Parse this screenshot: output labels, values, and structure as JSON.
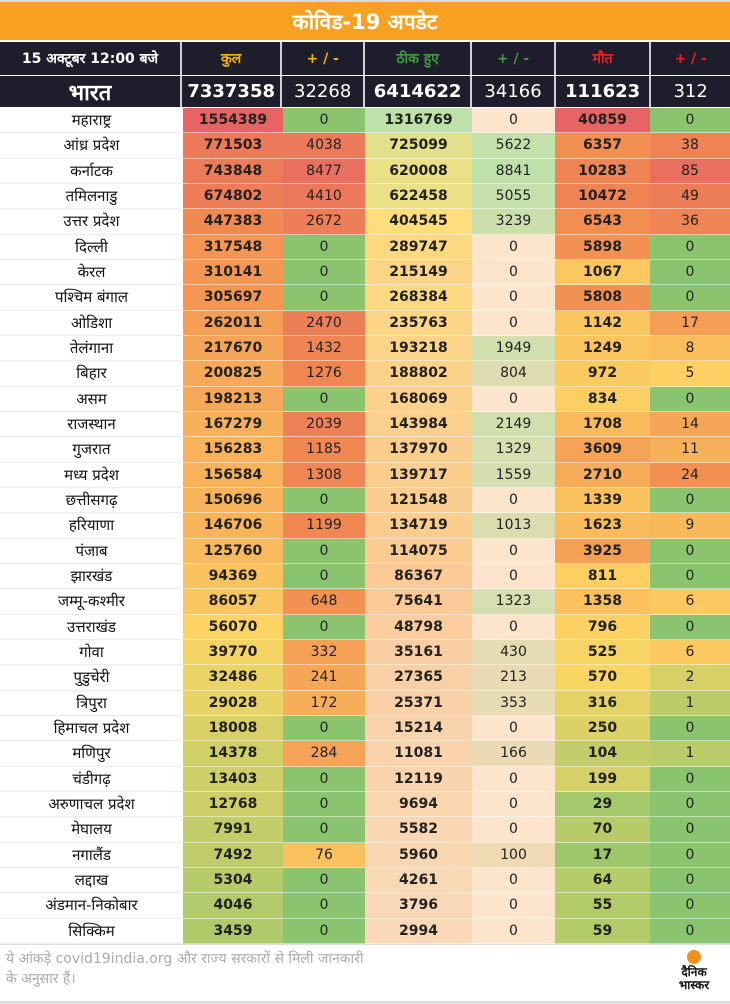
{
  "title": "कोविड-19 अपडेट",
  "header": {
    "date": "15 अक्टूबर 12:00 बजे",
    "total": "कुल",
    "total_delta": "+ / -",
    "recovered": "ठीक हुए",
    "recovered_delta": "+ / -",
    "deaths": "मौत",
    "deaths_delta": "+ / -"
  },
  "header_colors": {
    "total": "#f7b500",
    "recovered": "#3f9a3f",
    "deaths": "#e8202a"
  },
  "india": {
    "name": "भारत",
    "values": [
      "7337358",
      "32268",
      "6414622",
      "34166",
      "111623",
      "312"
    ]
  },
  "chart_data": {
    "type": "table",
    "columns": [
      "कुल",
      "+ / -",
      "ठीक हुए",
      "+ / -",
      "मौत",
      "+ / -"
    ],
    "rows": [
      [
        "महाराष्ट्र",
        1554389,
        0,
        1316769,
        0,
        40859,
        0
      ],
      [
        "आंध्र प्रदेश",
        771503,
        4038,
        725099,
        5622,
        6357,
        38
      ],
      [
        "कर्नाटक",
        743848,
        8477,
        620008,
        8841,
        10283,
        85
      ],
      [
        "तमिलनाडु",
        674802,
        4410,
        622458,
        5055,
        10472,
        49
      ],
      [
        "उत्तर प्रदेश",
        447383,
        2672,
        404545,
        3239,
        6543,
        36
      ],
      [
        "दिल्ली",
        317548,
        0,
        289747,
        0,
        5898,
        0
      ],
      [
        "केरल",
        310141,
        0,
        215149,
        0,
        1067,
        0
      ],
      [
        "पश्चिम बंगाल",
        305697,
        0,
        268384,
        0,
        5808,
        0
      ],
      [
        "ओडिशा",
        262011,
        2470,
        235763,
        0,
        1142,
        17
      ],
      [
        "तेलंगाना",
        217670,
        1432,
        193218,
        1949,
        1249,
        8
      ],
      [
        "बिहार",
        200825,
        1276,
        188802,
        804,
        972,
        5
      ],
      [
        "असम",
        198213,
        0,
        168069,
        0,
        834,
        0
      ],
      [
        "राजस्थान",
        167279,
        2039,
        143984,
        2149,
        1708,
        14
      ],
      [
        "गुजरात",
        156283,
        1185,
        137970,
        1329,
        3609,
        11
      ],
      [
        "मध्य प्रदेश",
        156584,
        1308,
        139717,
        1559,
        2710,
        24
      ],
      [
        "छत्तीसगढ़",
        150696,
        0,
        121548,
        0,
        1339,
        0
      ],
      [
        "हरियाणा",
        146706,
        1199,
        134719,
        1013,
        1623,
        9
      ],
      [
        "पंजाब",
        125760,
        0,
        114075,
        0,
        3925,
        0
      ],
      [
        "झारखंड",
        94369,
        0,
        86367,
        0,
        811,
        0
      ],
      [
        "जम्मू-कश्मीर",
        86057,
        648,
        75641,
        1323,
        1358,
        6
      ],
      [
        "उत्तराखंड",
        56070,
        0,
        48798,
        0,
        796,
        0
      ],
      [
        "गोवा",
        39770,
        332,
        35161,
        430,
        525,
        6
      ],
      [
        "पुडुचेरी",
        32486,
        241,
        27365,
        213,
        570,
        2
      ],
      [
        "त्रिपुरा",
        29028,
        172,
        25371,
        353,
        316,
        1
      ],
      [
        "हिमाचल प्रदेश",
        18008,
        0,
        15214,
        0,
        250,
        0
      ],
      [
        "मणिपुर",
        14378,
        284,
        11081,
        166,
        104,
        1
      ],
      [
        "चंडीगढ़",
        13403,
        0,
        12119,
        0,
        199,
        0
      ],
      [
        "अरुणाचल प्रदेश",
        12768,
        0,
        9694,
        0,
        29,
        0
      ],
      [
        "मेघालय",
        7991,
        0,
        5582,
        0,
        70,
        0
      ],
      [
        "नगालैंड",
        7492,
        76,
        5960,
        100,
        17,
        0
      ],
      [
        "लद्दाख",
        5304,
        0,
        4261,
        0,
        64,
        0
      ],
      [
        "अंडमान-निकोबार",
        4046,
        0,
        3796,
        0,
        55,
        0
      ],
      [
        "सिक्किम",
        3459,
        0,
        2994,
        0,
        59,
        0
      ]
    ]
  },
  "footer": {
    "note": "ये आंकड़े covid19india.org और राज्य सरकारों से मिली जानकारी के अनुसार हैं।",
    "logo_line1": "दैनिक",
    "logo_line2": "भास्कर"
  }
}
